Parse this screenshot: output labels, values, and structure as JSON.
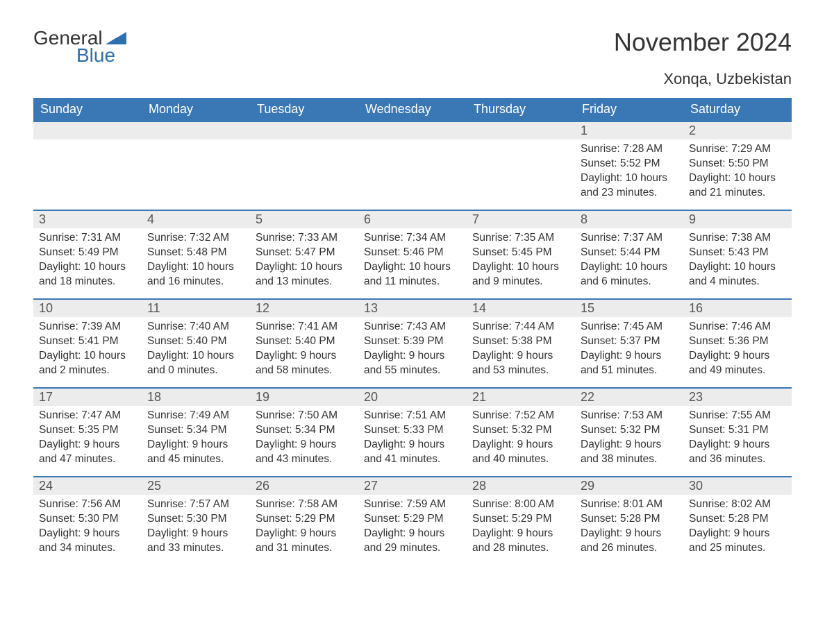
{
  "logo": {
    "general": "General",
    "blue": "Blue"
  },
  "title": "November 2024",
  "location": "Xonqa, Uzbekistan",
  "colors": {
    "header_bg": "#3a77b5",
    "header_text": "#ffffff",
    "daybar_bg": "#ececec",
    "daybar_border": "#3a77b5",
    "body_text": "#333333",
    "logo_blue": "#2f6fad",
    "page_bg": "#ffffff"
  },
  "fonts": {
    "title_size_pt": 27,
    "location_size_pt": 16,
    "header_size_pt": 13,
    "daynum_size_pt": 13,
    "body_size_pt": 11
  },
  "weekdays": [
    "Sunday",
    "Monday",
    "Tuesday",
    "Wednesday",
    "Thursday",
    "Friday",
    "Saturday"
  ],
  "weeks": [
    [
      null,
      null,
      null,
      null,
      null,
      {
        "n": "1",
        "sr": "Sunrise: 7:28 AM",
        "ss": "Sunset: 5:52 PM",
        "d1": "Daylight: 10 hours",
        "d2": "and 23 minutes."
      },
      {
        "n": "2",
        "sr": "Sunrise: 7:29 AM",
        "ss": "Sunset: 5:50 PM",
        "d1": "Daylight: 10 hours",
        "d2": "and 21 minutes."
      }
    ],
    [
      {
        "n": "3",
        "sr": "Sunrise: 7:31 AM",
        "ss": "Sunset: 5:49 PM",
        "d1": "Daylight: 10 hours",
        "d2": "and 18 minutes."
      },
      {
        "n": "4",
        "sr": "Sunrise: 7:32 AM",
        "ss": "Sunset: 5:48 PM",
        "d1": "Daylight: 10 hours",
        "d2": "and 16 minutes."
      },
      {
        "n": "5",
        "sr": "Sunrise: 7:33 AM",
        "ss": "Sunset: 5:47 PM",
        "d1": "Daylight: 10 hours",
        "d2": "and 13 minutes."
      },
      {
        "n": "6",
        "sr": "Sunrise: 7:34 AM",
        "ss": "Sunset: 5:46 PM",
        "d1": "Daylight: 10 hours",
        "d2": "and 11 minutes."
      },
      {
        "n": "7",
        "sr": "Sunrise: 7:35 AM",
        "ss": "Sunset: 5:45 PM",
        "d1": "Daylight: 10 hours",
        "d2": "and 9 minutes."
      },
      {
        "n": "8",
        "sr": "Sunrise: 7:37 AM",
        "ss": "Sunset: 5:44 PM",
        "d1": "Daylight: 10 hours",
        "d2": "and 6 minutes."
      },
      {
        "n": "9",
        "sr": "Sunrise: 7:38 AM",
        "ss": "Sunset: 5:43 PM",
        "d1": "Daylight: 10 hours",
        "d2": "and 4 minutes."
      }
    ],
    [
      {
        "n": "10",
        "sr": "Sunrise: 7:39 AM",
        "ss": "Sunset: 5:41 PM",
        "d1": "Daylight: 10 hours",
        "d2": "and 2 minutes."
      },
      {
        "n": "11",
        "sr": "Sunrise: 7:40 AM",
        "ss": "Sunset: 5:40 PM",
        "d1": "Daylight: 10 hours",
        "d2": "and 0 minutes."
      },
      {
        "n": "12",
        "sr": "Sunrise: 7:41 AM",
        "ss": "Sunset: 5:40 PM",
        "d1": "Daylight: 9 hours",
        "d2": "and 58 minutes."
      },
      {
        "n": "13",
        "sr": "Sunrise: 7:43 AM",
        "ss": "Sunset: 5:39 PM",
        "d1": "Daylight: 9 hours",
        "d2": "and 55 minutes."
      },
      {
        "n": "14",
        "sr": "Sunrise: 7:44 AM",
        "ss": "Sunset: 5:38 PM",
        "d1": "Daylight: 9 hours",
        "d2": "and 53 minutes."
      },
      {
        "n": "15",
        "sr": "Sunrise: 7:45 AM",
        "ss": "Sunset: 5:37 PM",
        "d1": "Daylight: 9 hours",
        "d2": "and 51 minutes."
      },
      {
        "n": "16",
        "sr": "Sunrise: 7:46 AM",
        "ss": "Sunset: 5:36 PM",
        "d1": "Daylight: 9 hours",
        "d2": "and 49 minutes."
      }
    ],
    [
      {
        "n": "17",
        "sr": "Sunrise: 7:47 AM",
        "ss": "Sunset: 5:35 PM",
        "d1": "Daylight: 9 hours",
        "d2": "and 47 minutes."
      },
      {
        "n": "18",
        "sr": "Sunrise: 7:49 AM",
        "ss": "Sunset: 5:34 PM",
        "d1": "Daylight: 9 hours",
        "d2": "and 45 minutes."
      },
      {
        "n": "19",
        "sr": "Sunrise: 7:50 AM",
        "ss": "Sunset: 5:34 PM",
        "d1": "Daylight: 9 hours",
        "d2": "and 43 minutes."
      },
      {
        "n": "20",
        "sr": "Sunrise: 7:51 AM",
        "ss": "Sunset: 5:33 PM",
        "d1": "Daylight: 9 hours",
        "d2": "and 41 minutes."
      },
      {
        "n": "21",
        "sr": "Sunrise: 7:52 AM",
        "ss": "Sunset: 5:32 PM",
        "d1": "Daylight: 9 hours",
        "d2": "and 40 minutes."
      },
      {
        "n": "22",
        "sr": "Sunrise: 7:53 AM",
        "ss": "Sunset: 5:32 PM",
        "d1": "Daylight: 9 hours",
        "d2": "and 38 minutes."
      },
      {
        "n": "23",
        "sr": "Sunrise: 7:55 AM",
        "ss": "Sunset: 5:31 PM",
        "d1": "Daylight: 9 hours",
        "d2": "and 36 minutes."
      }
    ],
    [
      {
        "n": "24",
        "sr": "Sunrise: 7:56 AM",
        "ss": "Sunset: 5:30 PM",
        "d1": "Daylight: 9 hours",
        "d2": "and 34 minutes."
      },
      {
        "n": "25",
        "sr": "Sunrise: 7:57 AM",
        "ss": "Sunset: 5:30 PM",
        "d1": "Daylight: 9 hours",
        "d2": "and 33 minutes."
      },
      {
        "n": "26",
        "sr": "Sunrise: 7:58 AM",
        "ss": "Sunset: 5:29 PM",
        "d1": "Daylight: 9 hours",
        "d2": "and 31 minutes."
      },
      {
        "n": "27",
        "sr": "Sunrise: 7:59 AM",
        "ss": "Sunset: 5:29 PM",
        "d1": "Daylight: 9 hours",
        "d2": "and 29 minutes."
      },
      {
        "n": "28",
        "sr": "Sunrise: 8:00 AM",
        "ss": "Sunset: 5:29 PM",
        "d1": "Daylight: 9 hours",
        "d2": "and 28 minutes."
      },
      {
        "n": "29",
        "sr": "Sunrise: 8:01 AM",
        "ss": "Sunset: 5:28 PM",
        "d1": "Daylight: 9 hours",
        "d2": "and 26 minutes."
      },
      {
        "n": "30",
        "sr": "Sunrise: 8:02 AM",
        "ss": "Sunset: 5:28 PM",
        "d1": "Daylight: 9 hours",
        "d2": "and 25 minutes."
      }
    ]
  ]
}
